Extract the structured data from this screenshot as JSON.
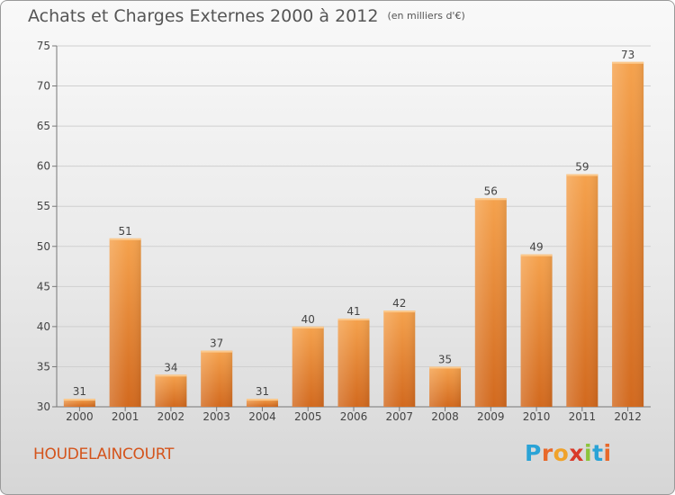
{
  "header": {
    "title": "Achats et Charges Externes 2000 à 2012",
    "unit": "(en milliers d'€)"
  },
  "footer": {
    "commune": "HOUDELAINCOURT",
    "logo_letters": [
      "P",
      "r",
      "o",
      "x",
      "i",
      "t",
      "i"
    ],
    "logo_colors": [
      "#2aa3d6",
      "#e8682a",
      "#f0a22a",
      "#d93a2a",
      "#8cc43c",
      "#2aa3d6",
      "#e8682a"
    ]
  },
  "colors": {
    "bar_top": "#f5a24d",
    "bar_bottom": "#d2691e",
    "grid": "#cfcfcf",
    "axis_text": "#444444"
  },
  "chart_data": {
    "type": "bar",
    "categories": [
      "2000",
      "2001",
      "2002",
      "2003",
      "2004",
      "2005",
      "2006",
      "2007",
      "2008",
      "2009",
      "2010",
      "2011",
      "2012"
    ],
    "values": [
      31,
      51,
      34,
      37,
      31,
      40,
      41,
      42,
      35,
      56,
      49,
      59,
      73
    ],
    "title": "Achats et Charges Externes 2000 à 2012",
    "xlabel": "",
    "ylabel": "",
    "ylim": [
      30,
      75
    ],
    "yticks": [
      30,
      35,
      40,
      45,
      50,
      55,
      60,
      65,
      70,
      75
    ],
    "grid": true,
    "legend": "none"
  }
}
